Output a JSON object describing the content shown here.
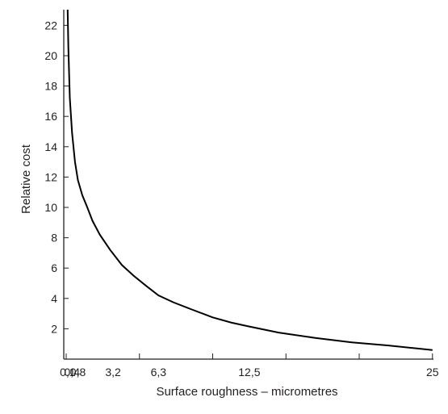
{
  "chart_data": {
    "type": "line",
    "xlabel": "Surface roughness – micrometres",
    "ylabel": "Relative cost",
    "xlim": [
      -0.25,
      25
    ],
    "ylim": [
      0,
      23
    ],
    "y_ticks": [
      2,
      4,
      6,
      8,
      10,
      12,
      14,
      16,
      18,
      20,
      22
    ],
    "y_tick_labels": [
      "2",
      "4",
      "6",
      "8",
      "10",
      "12",
      "14",
      "16",
      "18",
      "20",
      "22"
    ],
    "x_ticks": [
      0.1,
      0.4,
      0.8,
      3.2,
      6.3,
      12.5,
      25
    ],
    "x_tick_labels": [
      "0,1",
      "0,4",
      "0,8",
      "3,2",
      "6,3",
      "12,5",
      "25"
    ],
    "grid": false,
    "series": [
      {
        "values": [
          {
            "x": 0.1,
            "y": 23.2
          },
          {
            "x": 0.15,
            "y": 20.5
          },
          {
            "x": 0.25,
            "y": 17.2
          },
          {
            "x": 0.4,
            "y": 14.9
          },
          {
            "x": 0.6,
            "y": 13.0
          },
          {
            "x": 0.8,
            "y": 11.8
          },
          {
            "x": 1.1,
            "y": 10.8
          },
          {
            "x": 1.4,
            "y": 10.1
          },
          {
            "x": 1.8,
            "y": 9.1
          },
          {
            "x": 2.3,
            "y": 8.2
          },
          {
            "x": 3.0,
            "y": 7.2
          },
          {
            "x": 3.8,
            "y": 6.2
          },
          {
            "x": 4.6,
            "y": 5.5
          },
          {
            "x": 5.5,
            "y": 4.8
          },
          {
            "x": 6.3,
            "y": 4.2
          },
          {
            "x": 7.3,
            "y": 3.75
          },
          {
            "x": 8.5,
            "y": 3.3
          },
          {
            "x": 10.0,
            "y": 2.75
          },
          {
            "x": 11.3,
            "y": 2.4
          },
          {
            "x": 12.5,
            "y": 2.15
          },
          {
            "x": 14.5,
            "y": 1.75
          },
          {
            "x": 17.0,
            "y": 1.4
          },
          {
            "x": 19.5,
            "y": 1.1
          },
          {
            "x": 22.0,
            "y": 0.9
          },
          {
            "x": 25.0,
            "y": 0.6
          }
        ]
      }
    ]
  }
}
